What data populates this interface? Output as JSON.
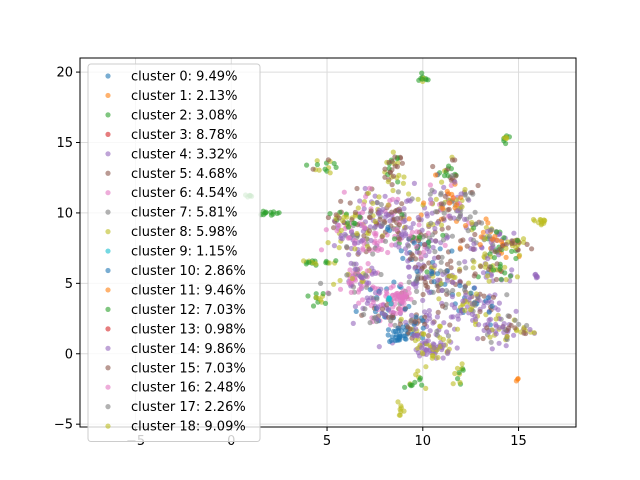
{
  "chart_data": {
    "type": "scatter",
    "title": "",
    "xlabel": "",
    "ylabel": "",
    "xlim": [
      -7.9,
      18
    ],
    "ylim": [
      -5.2,
      21
    ],
    "xticks": [
      -5,
      0,
      5,
      10,
      15
    ],
    "yticks": [
      -5,
      0,
      5,
      10,
      15,
      20
    ],
    "grid": true,
    "legend_position": "upper-left",
    "series": [
      {
        "name": "cluster 0: 9.49%",
        "color": "#1f77b4"
      },
      {
        "name": "cluster 1: 2.13%",
        "color": "#ff7f0e"
      },
      {
        "name": "cluster 2: 3.08%",
        "color": "#2ca02c"
      },
      {
        "name": "cluster 3: 8.78%",
        "color": "#d62728"
      },
      {
        "name": "cluster 4: 3.32%",
        "color": "#9467bd"
      },
      {
        "name": "cluster 5: 4.68%",
        "color": "#8c564b"
      },
      {
        "name": "cluster 6: 4.54%",
        "color": "#e377c2"
      },
      {
        "name": "cluster 7: 5.81%",
        "color": "#7f7f7f"
      },
      {
        "name": "cluster 8: 5.98%",
        "color": "#bcbd22"
      },
      {
        "name": "cluster 9: 1.15%",
        "color": "#17becf"
      },
      {
        "name": "cluster 10: 2.86%",
        "color": "#1f77b4"
      },
      {
        "name": "cluster 11: 9.46%",
        "color": "#ff7f0e"
      },
      {
        "name": "cluster 12: 7.03%",
        "color": "#2ca02c"
      },
      {
        "name": "cluster 13: 0.98%",
        "color": "#d62728"
      },
      {
        "name": "cluster 14: 9.86%",
        "color": "#9467bd"
      },
      {
        "name": "cluster 15: 7.03%",
        "color": "#8c564b"
      },
      {
        "name": "cluster 16: 2.48%",
        "color": "#e377c2"
      },
      {
        "name": "cluster 17: 2.26%",
        "color": "#7f7f7f"
      },
      {
        "name": "cluster 18: 9.09%",
        "color": "#bcbd22"
      }
    ],
    "point_groups": [
      {
        "cx": 10.0,
        "cy": 19.6,
        "sx": 0.1,
        "sy": 0.2,
        "n": 10,
        "colors": [
          8,
          2
        ]
      },
      {
        "cx": 14.4,
        "cy": 15.3,
        "sx": 0.1,
        "sy": 0.2,
        "n": 10,
        "colors": [
          8,
          2
        ]
      },
      {
        "cx": 8.5,
        "cy": 13.3,
        "sx": 0.3,
        "sy": 0.6,
        "n": 30,
        "colors": [
          2,
          8,
          5
        ]
      },
      {
        "cx": 4.8,
        "cy": 13.3,
        "sx": 0.4,
        "sy": 0.3,
        "n": 15,
        "colors": [
          8,
          5,
          2
        ]
      },
      {
        "cx": 11.4,
        "cy": 12.8,
        "sx": 0.3,
        "sy": 0.4,
        "n": 20,
        "colors": [
          8,
          5,
          2
        ]
      },
      {
        "cx": 0.9,
        "cy": 11.3,
        "sx": 0.1,
        "sy": 0.1,
        "n": 6,
        "colors": [
          2
        ]
      },
      {
        "cx": 1.8,
        "cy": 10.0,
        "sx": 0.3,
        "sy": 0.1,
        "n": 12,
        "colors": [
          2
        ]
      },
      {
        "cx": 16.3,
        "cy": 9.4,
        "sx": 0.3,
        "sy": 0.2,
        "n": 12,
        "colors": [
          8
        ]
      },
      {
        "cx": 4.6,
        "cy": 6.5,
        "sx": 0.6,
        "sy": 0.1,
        "n": 18,
        "colors": [
          2,
          8,
          12
        ]
      },
      {
        "cx": 4.5,
        "cy": 4.0,
        "sx": 0.3,
        "sy": 0.3,
        "n": 12,
        "colors": [
          8,
          2
        ]
      },
      {
        "cx": 16.0,
        "cy": 5.5,
        "sx": 0.1,
        "sy": 0.1,
        "n": 6,
        "colors": [
          4
        ]
      },
      {
        "cx": 15.2,
        "cy": 1.7,
        "sx": 0.5,
        "sy": 0.3,
        "n": 15,
        "colors": [
          5,
          4,
          8
        ]
      },
      {
        "cx": 14.9,
        "cy": -1.8,
        "sx": 0.05,
        "sy": 0.05,
        "n": 3,
        "colors": [
          3,
          1
        ]
      },
      {
        "cx": 11.9,
        "cy": -1.2,
        "sx": 0.2,
        "sy": 0.4,
        "n": 12,
        "colors": [
          8,
          2
        ]
      },
      {
        "cx": 9.8,
        "cy": -1.8,
        "sx": 0.2,
        "sy": 0.3,
        "n": 8,
        "colors": [
          2,
          8
        ]
      },
      {
        "cx": 9.3,
        "cy": -2.3,
        "sx": 0.1,
        "sy": 0.1,
        "n": 5,
        "colors": [
          2,
          8
        ]
      },
      {
        "cx": 8.8,
        "cy": -3.7,
        "sx": 0.1,
        "sy": 0.3,
        "n": 8,
        "colors": [
          8
        ]
      },
      {
        "cx": 8.2,
        "cy": 10.0,
        "sx": 0.8,
        "sy": 1.0,
        "n": 120,
        "colors": [
          5,
          8,
          4,
          6,
          7,
          15,
          14
        ]
      },
      {
        "cx": 11.3,
        "cy": 10.5,
        "sx": 0.8,
        "sy": 0.8,
        "n": 110,
        "colors": [
          5,
          8,
          4,
          6,
          7,
          11,
          14
        ]
      },
      {
        "cx": 6.5,
        "cy": 8.3,
        "sx": 0.7,
        "sy": 0.8,
        "n": 90,
        "colors": [
          4,
          5,
          6,
          7,
          16,
          14,
          8
        ]
      },
      {
        "cx": 9.6,
        "cy": 8.0,
        "sx": 0.9,
        "sy": 0.8,
        "n": 110,
        "colors": [
          4,
          5,
          0,
          7,
          14,
          16,
          12
        ]
      },
      {
        "cx": 13.4,
        "cy": 8.0,
        "sx": 0.7,
        "sy": 0.8,
        "n": 90,
        "colors": [
          8,
          5,
          4,
          7,
          14,
          2,
          11
        ]
      },
      {
        "cx": 6.6,
        "cy": 5.2,
        "sx": 0.7,
        "sy": 0.7,
        "n": 80,
        "colors": [
          4,
          14,
          6,
          8,
          16,
          7
        ]
      },
      {
        "cx": 10.6,
        "cy": 5.5,
        "sx": 1.0,
        "sy": 0.8,
        "n": 120,
        "colors": [
          4,
          14,
          5,
          8,
          0,
          7,
          15
        ]
      },
      {
        "cx": 12.8,
        "cy": 3.5,
        "sx": 0.7,
        "sy": 0.7,
        "n": 90,
        "colors": [
          4,
          14,
          5,
          8,
          7,
          0
        ]
      },
      {
        "cx": 8.0,
        "cy": 3.2,
        "sx": 0.7,
        "sy": 0.6,
        "n": 80,
        "colors": [
          4,
          14,
          5,
          6,
          7,
          0
        ]
      },
      {
        "cx": 8.8,
        "cy": 4.0,
        "sx": 0.3,
        "sy": 0.4,
        "n": 40,
        "colors": [
          6,
          16
        ]
      },
      {
        "cx": 8.2,
        "cy": 3.8,
        "sx": 0.1,
        "sy": 0.1,
        "n": 6,
        "colors": [
          9
        ]
      },
      {
        "cx": 9.8,
        "cy": 1.8,
        "sx": 0.7,
        "sy": 0.7,
        "n": 90,
        "colors": [
          4,
          14,
          5,
          0,
          8,
          7
        ]
      },
      {
        "cx": 10.6,
        "cy": 0.3,
        "sx": 0.5,
        "sy": 0.4,
        "n": 60,
        "colors": [
          8,
          18,
          4,
          14
        ]
      },
      {
        "cx": 14.0,
        "cy": 1.8,
        "sx": 0.6,
        "sy": 0.5,
        "n": 50,
        "colors": [
          4,
          14,
          5,
          7,
          8
        ]
      },
      {
        "cx": 8.6,
        "cy": 1.2,
        "sx": 0.3,
        "sy": 0.2,
        "n": 20,
        "colors": [
          0,
          10
        ]
      },
      {
        "cx": 13.7,
        "cy": 5.8,
        "sx": 0.5,
        "sy": 0.5,
        "n": 40,
        "colors": [
          8,
          5,
          4,
          2
        ]
      },
      {
        "cx": 5.9,
        "cy": 9.6,
        "sx": 0.4,
        "sy": 0.3,
        "n": 30,
        "colors": [
          2,
          8,
          5
        ]
      },
      {
        "cx": 14.8,
        "cy": 7.7,
        "sx": 0.4,
        "sy": 0.4,
        "n": 30,
        "colors": [
          8,
          5,
          2
        ]
      }
    ]
  }
}
